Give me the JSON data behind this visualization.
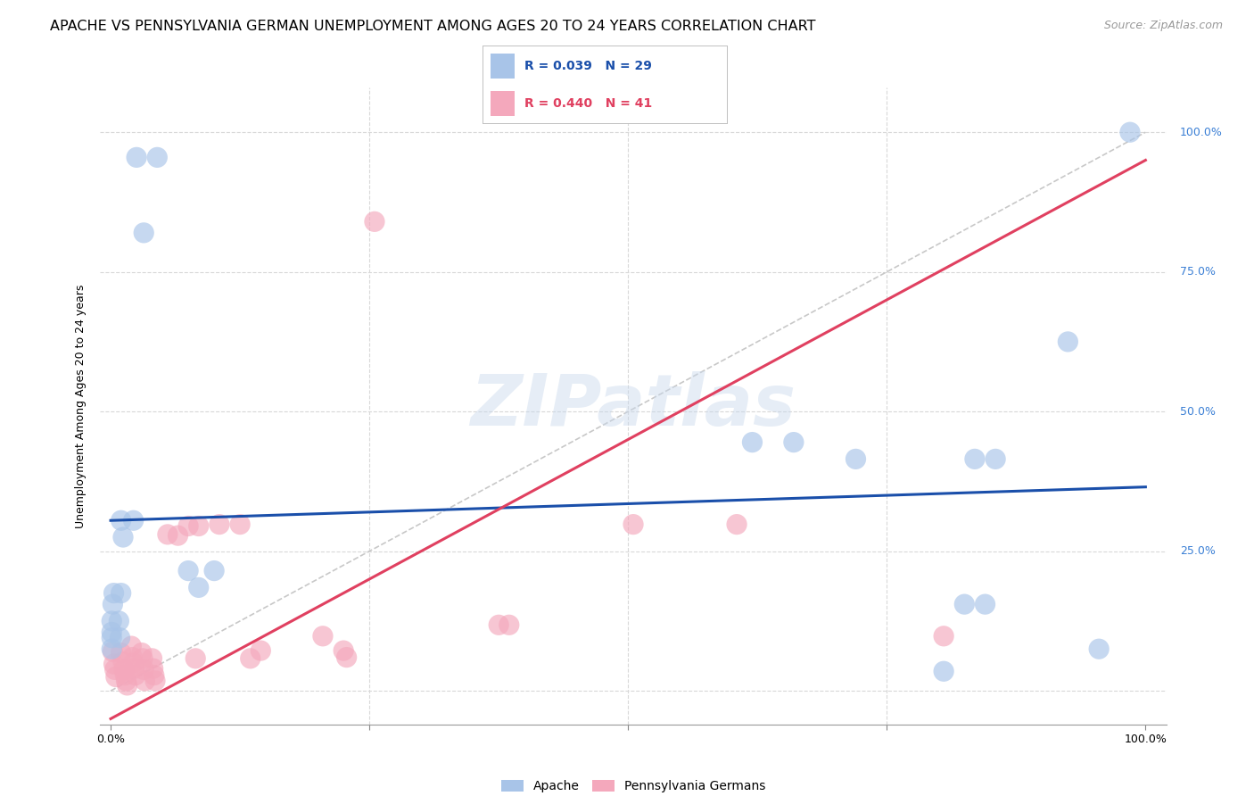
{
  "title": "APACHE VS PENNSYLVANIA GERMAN UNEMPLOYMENT AMONG AGES 20 TO 24 YEARS CORRELATION CHART",
  "source": "Source: ZipAtlas.com",
  "ylabel": "Unemployment Among Ages 20 to 24 years",
  "legend_apache": "Apache",
  "legend_pa_german": "Pennsylvania Germans",
  "apache_color": "#a8c4e8",
  "pa_color": "#f4a8bc",
  "apache_line_color": "#1a4faa",
  "pa_line_color": "#e04060",
  "diagonal_color": "#c8c8c8",
  "grid_color": "#d8d8d8",
  "watermark": "ZIPatlas",
  "background": "#ffffff",
  "apache_points": [
    [
      0.025,
      0.955
    ],
    [
      0.045,
      0.955
    ],
    [
      0.032,
      0.82
    ],
    [
      0.01,
      0.305
    ],
    [
      0.022,
      0.305
    ],
    [
      0.012,
      0.275
    ],
    [
      0.003,
      0.175
    ],
    [
      0.01,
      0.175
    ],
    [
      0.002,
      0.155
    ],
    [
      0.001,
      0.125
    ],
    [
      0.008,
      0.125
    ],
    [
      0.001,
      0.105
    ],
    [
      0.001,
      0.095
    ],
    [
      0.009,
      0.095
    ],
    [
      0.001,
      0.075
    ],
    [
      0.075,
      0.215
    ],
    [
      0.1,
      0.215
    ],
    [
      0.085,
      0.185
    ],
    [
      0.62,
      0.445
    ],
    [
      0.66,
      0.445
    ],
    [
      0.72,
      0.415
    ],
    [
      0.835,
      0.415
    ],
    [
      0.855,
      0.415
    ],
    [
      0.825,
      0.155
    ],
    [
      0.845,
      0.155
    ],
    [
      0.805,
      0.035
    ],
    [
      0.925,
      0.625
    ],
    [
      0.955,
      0.075
    ],
    [
      0.985,
      1.0
    ]
  ],
  "pa_points": [
    [
      0.002,
      0.07
    ],
    [
      0.003,
      0.048
    ],
    [
      0.004,
      0.038
    ],
    [
      0.005,
      0.025
    ],
    [
      0.01,
      0.068
    ],
    [
      0.012,
      0.052
    ],
    [
      0.013,
      0.038
    ],
    [
      0.014,
      0.028
    ],
    [
      0.015,
      0.018
    ],
    [
      0.016,
      0.01
    ],
    [
      0.02,
      0.08
    ],
    [
      0.021,
      0.06
    ],
    [
      0.022,
      0.05
    ],
    [
      0.023,
      0.04
    ],
    [
      0.024,
      0.028
    ],
    [
      0.03,
      0.068
    ],
    [
      0.031,
      0.058
    ],
    [
      0.032,
      0.038
    ],
    [
      0.033,
      0.018
    ],
    [
      0.04,
      0.058
    ],
    [
      0.041,
      0.04
    ],
    [
      0.042,
      0.028
    ],
    [
      0.043,
      0.018
    ],
    [
      0.055,
      0.28
    ],
    [
      0.065,
      0.278
    ],
    [
      0.075,
      0.295
    ],
    [
      0.085,
      0.295
    ],
    [
      0.082,
      0.058
    ],
    [
      0.105,
      0.298
    ],
    [
      0.125,
      0.298
    ],
    [
      0.135,
      0.058
    ],
    [
      0.145,
      0.072
    ],
    [
      0.205,
      0.098
    ],
    [
      0.225,
      0.072
    ],
    [
      0.228,
      0.06
    ],
    [
      0.255,
      0.84
    ],
    [
      0.375,
      0.118
    ],
    [
      0.385,
      0.118
    ],
    [
      0.505,
      0.298
    ],
    [
      0.605,
      0.298
    ],
    [
      0.805,
      0.098
    ]
  ],
  "apache_line_x": [
    0.0,
    1.0
  ],
  "apache_line_y": [
    0.305,
    0.365
  ],
  "pa_line_x": [
    0.0,
    1.0
  ],
  "pa_line_y": [
    -0.05,
    0.95
  ],
  "diagonal_line_x": [
    0.0,
    1.0
  ],
  "diagonal_line_y": [
    0.0,
    1.0
  ],
  "ytick_positions": [
    0.0,
    0.25,
    0.5,
    0.75,
    1.0
  ],
  "ytick_labels": [
    "",
    "25.0%",
    "50.0%",
    "75.0%",
    "100.0%"
  ],
  "xtick_positions": [
    0.0,
    0.25,
    0.5,
    0.75,
    1.0
  ],
  "xtick_labels": [
    "0.0%",
    "",
    "",
    "",
    "100.0%"
  ],
  "xlim": [
    -0.01,
    1.02
  ],
  "ylim": [
    -0.06,
    1.08
  ],
  "title_fontsize": 11.5,
  "axis_label_fontsize": 9,
  "tick_fontsize": 9,
  "legend_fontsize": 10,
  "source_fontsize": 9,
  "right_label_color": "#3a7fd5"
}
